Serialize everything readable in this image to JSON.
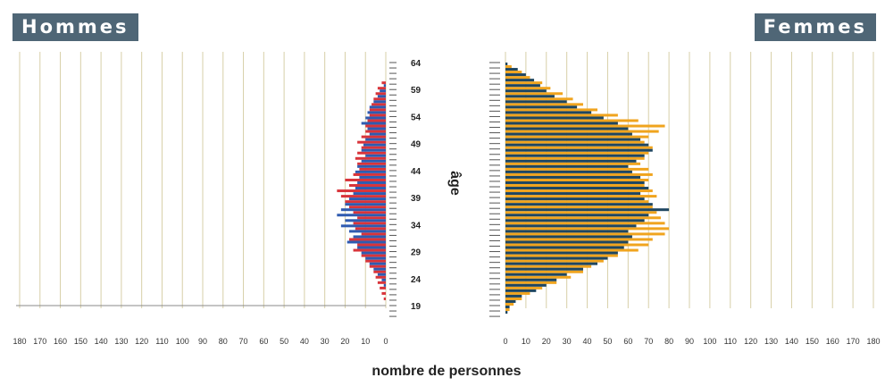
{
  "chart_data": {
    "type": "bar",
    "left_title": "Hommes",
    "right_title": "Femmes",
    "xlabel": "nombre de personnes",
    "ylabel": "âge",
    "left_xlim": [
      0,
      180
    ],
    "right_xlim": [
      0,
      180
    ],
    "left_ticks": [
      "180",
      "170",
      "160",
      "150",
      "140",
      "130",
      "120",
      "110",
      "100",
      "90",
      "80",
      "70",
      "60",
      "50",
      "40",
      "30",
      "20",
      "10",
      "0"
    ],
    "right_ticks": [
      "0",
      "10",
      "20",
      "30",
      "40",
      "50",
      "60",
      "70",
      "80",
      "90",
      "100",
      "110",
      "120",
      "130",
      "140",
      "150",
      "160",
      "170",
      "180"
    ],
    "age_ticks": [
      "64",
      "59",
      "54",
      "49",
      "44",
      "39",
      "34",
      "29",
      "24",
      "19"
    ],
    "ages": [
      64,
      63,
      62,
      61,
      60,
      59,
      58,
      57,
      56,
      55,
      54,
      53,
      52,
      51,
      50,
      49,
      48,
      47,
      46,
      45,
      44,
      43,
      42,
      41,
      40,
      39,
      38,
      37,
      36,
      35,
      34,
      33,
      32,
      31,
      30,
      29,
      28,
      27,
      26,
      25,
      24,
      23,
      22,
      21,
      20,
      19,
      18,
      17
    ],
    "series": [
      {
        "side": "left",
        "color": "#d8343a",
        "values": [
          0,
          0,
          0,
          0,
          2,
          4,
          5,
          6,
          7,
          8,
          8,
          9,
          10,
          10,
          12,
          14,
          12,
          14,
          15,
          14,
          13,
          16,
          20,
          18,
          24,
          22,
          20,
          18,
          16,
          14,
          16,
          15,
          12,
          18,
          14,
          16,
          12,
          10,
          8,
          6,
          5,
          4,
          3,
          2,
          1,
          0,
          0,
          0
        ]
      },
      {
        "side": "left",
        "color": "#2f5bb0",
        "values": [
          0,
          0,
          0,
          0,
          1,
          3,
          4,
          6,
          8,
          9,
          10,
          12,
          9,
          8,
          10,
          11,
          12,
          10,
          12,
          14,
          15,
          13,
          14,
          15,
          16,
          18,
          20,
          22,
          24,
          20,
          22,
          18,
          16,
          19,
          14,
          12,
          10,
          8,
          6,
          4,
          2,
          1,
          0,
          0,
          0,
          0,
          0,
          0
        ]
      },
      {
        "side": "right",
        "color": "#f0a41e",
        "values": [
          0,
          3,
          8,
          12,
          18,
          22,
          28,
          33,
          38,
          45,
          55,
          65,
          78,
          75,
          70,
          68,
          72,
          70,
          68,
          66,
          70,
          72,
          70,
          68,
          72,
          74,
          70,
          72,
          74,
          76,
          78,
          80,
          78,
          72,
          70,
          65,
          55,
          48,
          42,
          38,
          32,
          25,
          18,
          12,
          8,
          4,
          2,
          0
        ]
      },
      {
        "side": "right",
        "color": "#1f4660",
        "values": [
          1,
          6,
          10,
          14,
          17,
          20,
          24,
          30,
          35,
          42,
          48,
          55,
          60,
          62,
          66,
          70,
          72,
          68,
          64,
          60,
          62,
          66,
          68,
          70,
          66,
          68,
          72,
          80,
          70,
          68,
          64,
          60,
          62,
          60,
          58,
          55,
          50,
          45,
          38,
          30,
          25,
          20,
          15,
          8,
          5,
          2,
          1,
          0
        ]
      }
    ]
  }
}
